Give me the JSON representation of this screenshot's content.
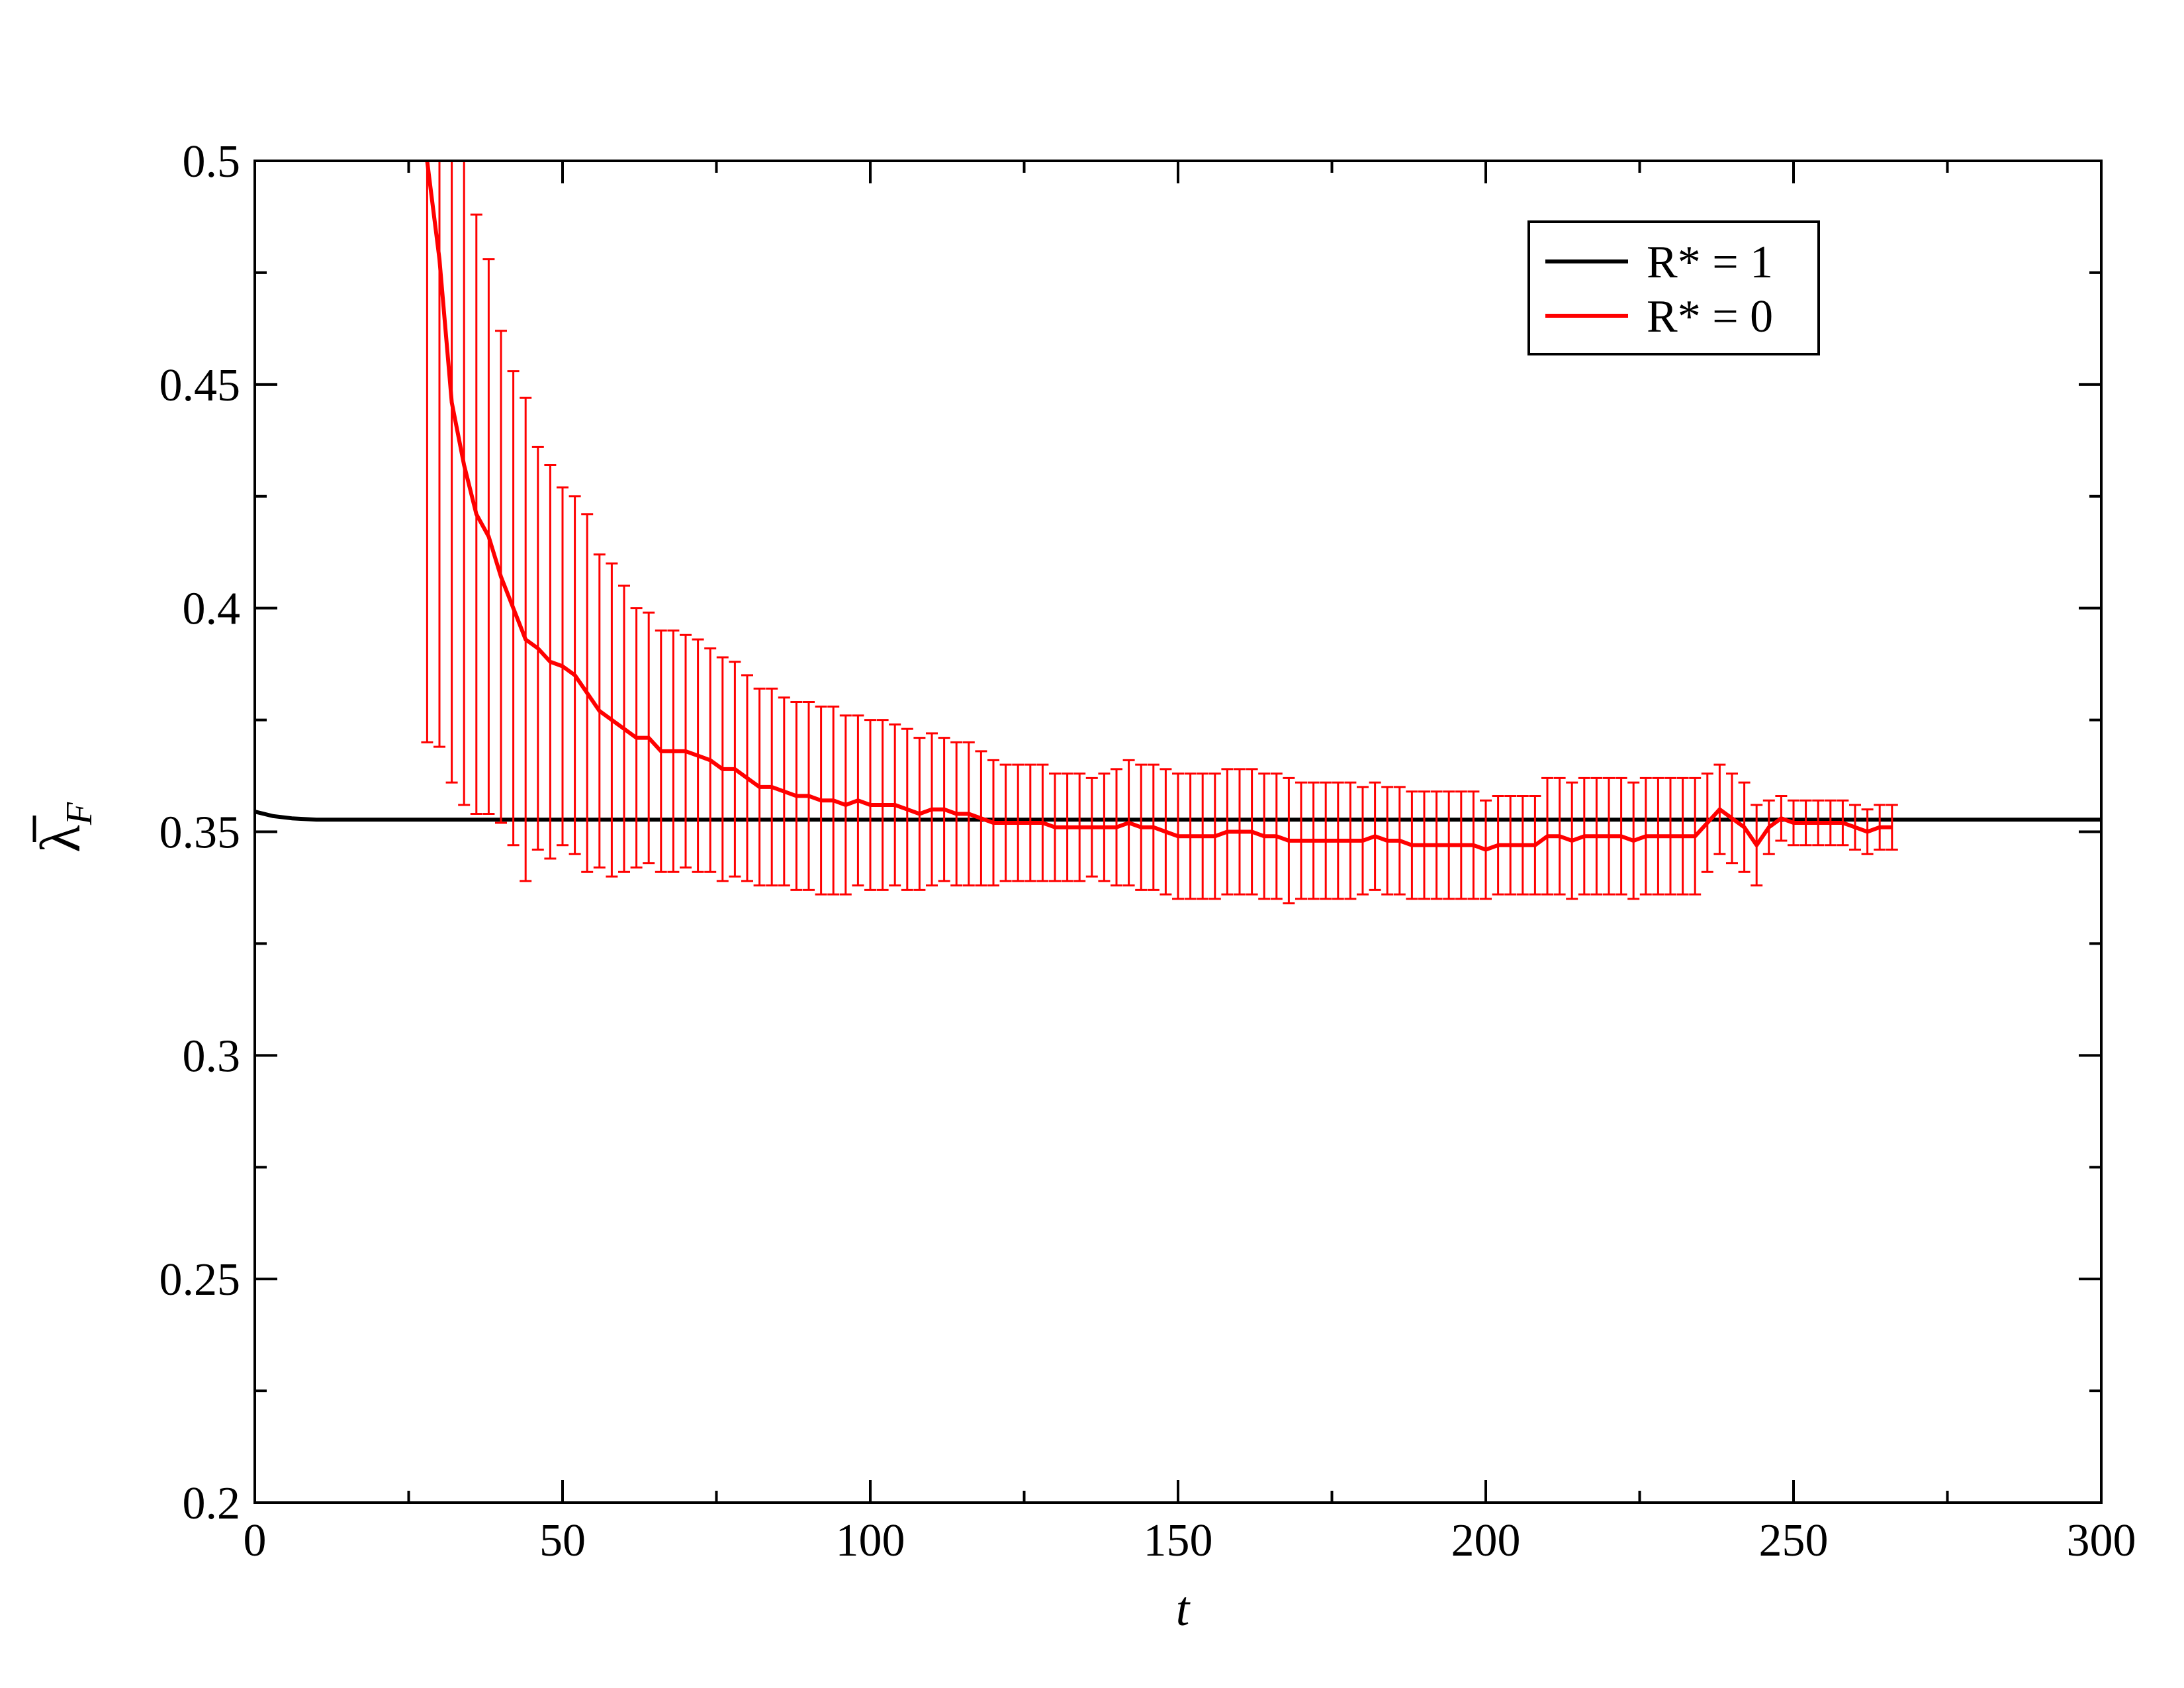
{
  "chart_data": {
    "type": "line",
    "title": "",
    "xlabel": "t",
    "ylabel": "λ̄F",
    "ylabel_main": "λ",
    "ylabel_sub": "F",
    "xlim": [
      0,
      300
    ],
    "ylim": [
      0.2,
      0.5
    ],
    "x_major_ticks": [
      0,
      50,
      100,
      150,
      200,
      250,
      300
    ],
    "x_tick_labels": [
      "0",
      "50",
      "100",
      "150",
      "200",
      "250",
      "300"
    ],
    "x_minor_ticks": [
      25,
      75,
      125,
      175,
      225,
      275
    ],
    "y_major_ticks": [
      0.2,
      0.25,
      0.3,
      0.35,
      0.4,
      0.45,
      0.5
    ],
    "y_tick_labels": [
      "0.2",
      "0.25",
      "0.3",
      "0.35",
      "0.4",
      "0.45",
      "0.5"
    ],
    "y_minor_ticks": [
      0.225,
      0.275,
      0.325,
      0.375,
      0.425,
      0.475
    ],
    "grid": false,
    "legend_position": "top-right",
    "series": [
      {
        "name": "R* = 1",
        "color": "#000000",
        "x": [
          0,
          3,
          6,
          10,
          20,
          50,
          100,
          150,
          200,
          250,
          300
        ],
        "y": [
          0.3545,
          0.3535,
          0.353,
          0.3527,
          0.3527,
          0.3527,
          0.3527,
          0.3527,
          0.3527,
          0.3527,
          0.3527
        ]
      },
      {
        "name": "R* = 0",
        "color": "#ff0000",
        "x": [
          28,
          30,
          32,
          34,
          36,
          38,
          40,
          42,
          44,
          46,
          48,
          50,
          52,
          54,
          56,
          58,
          60,
          62,
          64,
          66,
          68,
          70,
          72,
          74,
          76,
          78,
          80,
          82,
          84,
          86,
          88,
          90,
          92,
          94,
          96,
          98,
          100,
          102,
          104,
          106,
          108,
          110,
          112,
          114,
          116,
          118,
          120,
          122,
          124,
          126,
          128,
          130,
          132,
          134,
          136,
          138,
          140,
          142,
          144,
          146,
          148,
          150,
          152,
          154,
          156,
          158,
          160,
          162,
          164,
          166,
          168,
          170,
          172,
          174,
          176,
          178,
          180,
          182,
          184,
          186,
          188,
          190,
          192,
          194,
          196,
          198,
          200,
          202,
          204,
          206,
          208,
          210,
          212,
          214,
          216,
          218,
          220,
          222,
          224,
          226,
          228,
          230,
          232,
          234,
          236,
          238,
          240,
          242,
          244,
          246,
          248,
          250,
          252,
          254,
          256,
          258,
          260,
          262,
          264,
          266
        ],
        "y": [
          0.5,
          0.478,
          0.446,
          0.432,
          0.421,
          0.416,
          0.407,
          0.4,
          0.393,
          0.391,
          0.388,
          0.387,
          0.385,
          0.381,
          0.377,
          0.375,
          0.373,
          0.371,
          0.371,
          0.368,
          0.368,
          0.368,
          0.367,
          0.366,
          0.364,
          0.364,
          0.362,
          0.36,
          0.36,
          0.359,
          0.358,
          0.358,
          0.357,
          0.357,
          0.356,
          0.357,
          0.356,
          0.356,
          0.356,
          0.355,
          0.354,
          0.355,
          0.355,
          0.354,
          0.354,
          0.353,
          0.352,
          0.352,
          0.352,
          0.352,
          0.352,
          0.351,
          0.351,
          0.351,
          0.351,
          0.351,
          0.351,
          0.352,
          0.351,
          0.351,
          0.35,
          0.349,
          0.349,
          0.349,
          0.349,
          0.35,
          0.35,
          0.35,
          0.349,
          0.349,
          0.348,
          0.348,
          0.348,
          0.348,
          0.348,
          0.348,
          0.348,
          0.349,
          0.348,
          0.348,
          0.347,
          0.347,
          0.347,
          0.347,
          0.347,
          0.347,
          0.346,
          0.347,
          0.347,
          0.347,
          0.347,
          0.349,
          0.349,
          0.348,
          0.349,
          0.349,
          0.349,
          0.349,
          0.348,
          0.349,
          0.349,
          0.349,
          0.349,
          0.349,
          0.352,
          0.355,
          0.353,
          0.351,
          0.347,
          0.351,
          0.353,
          0.352,
          0.352,
          0.352,
          0.352,
          0.352,
          0.351,
          0.35,
          0.351,
          0.351
        ],
        "err": [
          0.13,
          0.109,
          0.085,
          0.076,
          0.067,
          0.062,
          0.055,
          0.053,
          0.054,
          0.045,
          0.044,
          0.04,
          0.04,
          0.04,
          0.035,
          0.035,
          0.032,
          0.029,
          0.028,
          0.027,
          0.027,
          0.026,
          0.026,
          0.025,
          0.025,
          0.024,
          0.023,
          0.022,
          0.022,
          0.021,
          0.021,
          0.021,
          0.021,
          0.021,
          0.02,
          0.019,
          0.019,
          0.019,
          0.018,
          0.018,
          0.017,
          0.017,
          0.016,
          0.016,
          0.016,
          0.015,
          0.014,
          0.013,
          0.013,
          0.013,
          0.013,
          0.012,
          0.012,
          0.012,
          0.011,
          0.012,
          0.013,
          0.014,
          0.014,
          0.014,
          0.014,
          0.014,
          0.014,
          0.014,
          0.014,
          0.014,
          0.014,
          0.014,
          0.014,
          0.014,
          0.014,
          0.013,
          0.013,
          0.013,
          0.013,
          0.013,
          0.012,
          0.012,
          0.012,
          0.012,
          0.012,
          0.012,
          0.012,
          0.012,
          0.012,
          0.012,
          0.011,
          0.011,
          0.011,
          0.011,
          0.011,
          0.013,
          0.013,
          0.013,
          0.013,
          0.013,
          0.013,
          0.013,
          0.013,
          0.013,
          0.013,
          0.013,
          0.013,
          0.013,
          0.011,
          0.01,
          0.01,
          0.01,
          0.009,
          0.006,
          0.005,
          0.005,
          0.005,
          0.005,
          0.005,
          0.005,
          0.005,
          0.005,
          0.005,
          0.005
        ]
      }
    ]
  }
}
